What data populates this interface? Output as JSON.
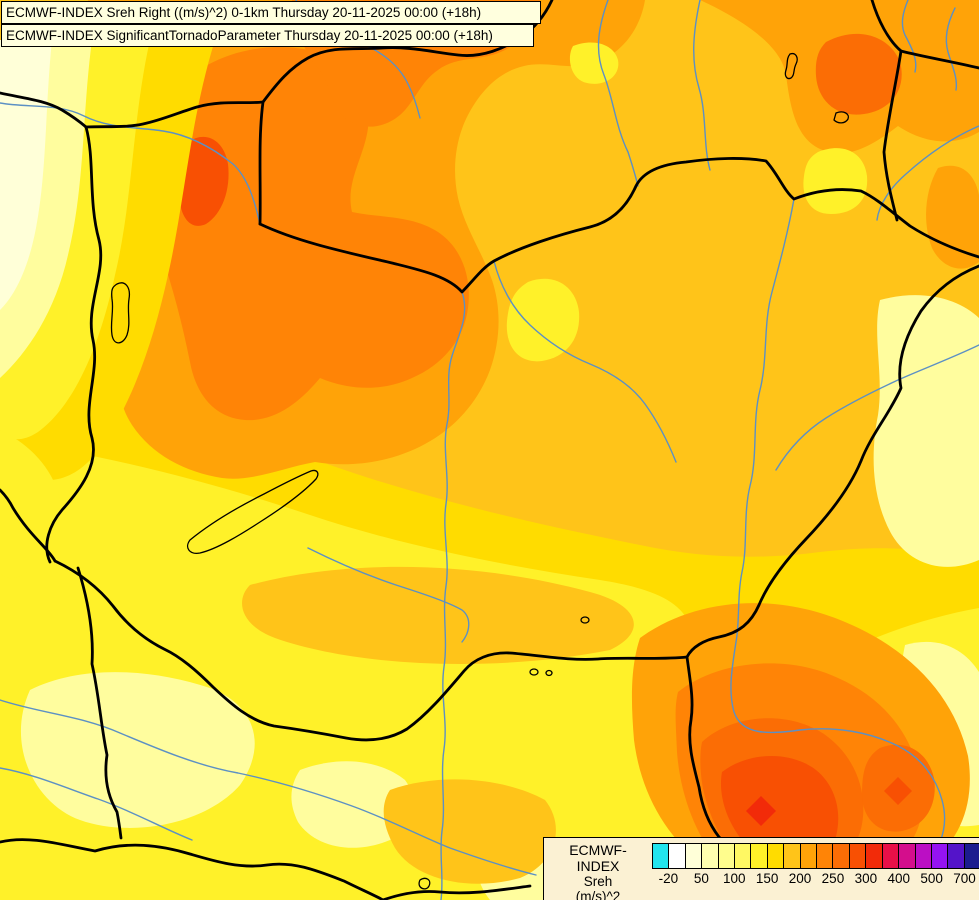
{
  "titles": {
    "line1": "ECMWF-INDEX Sreh Right ((m/s)^2) 0-1km Thursday 20-11-2025 00:00 (+18h)",
    "line2": "ECMWF-INDEX SignificantTornadoParameter Thursday 20-11-2025 00:00 (+18h)",
    "bg": "#FFFFDE"
  },
  "legend": {
    "title": "ECMWF-INDEX",
    "parameter": "Sreh",
    "units": "(m/s)^2",
    "tick_labels": [
      "-20",
      "50",
      "100",
      "150",
      "200",
      "250",
      "300",
      "400",
      "500",
      "700"
    ],
    "swatch_colors": [
      "#22E5EE",
      "#FFFFFF",
      "#FFFFD8",
      "#FFFFB0",
      "#FFFD8D",
      "#FFF863",
      "#FFF129",
      "#FFDC00",
      "#FFC419",
      "#FFA308",
      "#FF8406",
      "#FB6D05",
      "#F85003",
      "#F22B09",
      "#E81048",
      "#D40E8C",
      "#BB0FC4",
      "#9513F2",
      "#5414C9",
      "#1C1C8F"
    ],
    "bg": "#FBF1D3"
  },
  "map": {
    "palette": {
      "cream": "#FFFFD8",
      "pale_yellow": "#FFFD9E",
      "yellow": "#FFF129",
      "gold": "#FFDC00",
      "amber": "#FFC419",
      "orange": "#FFA308",
      "deep_orange": "#FF8406",
      "orange_red": "#FB6D05",
      "red_orange": "#F85003",
      "red": "#F22B09"
    },
    "border_color": "#000000",
    "river_color": "#5C90C4",
    "lake_outline_color": "#000000"
  }
}
